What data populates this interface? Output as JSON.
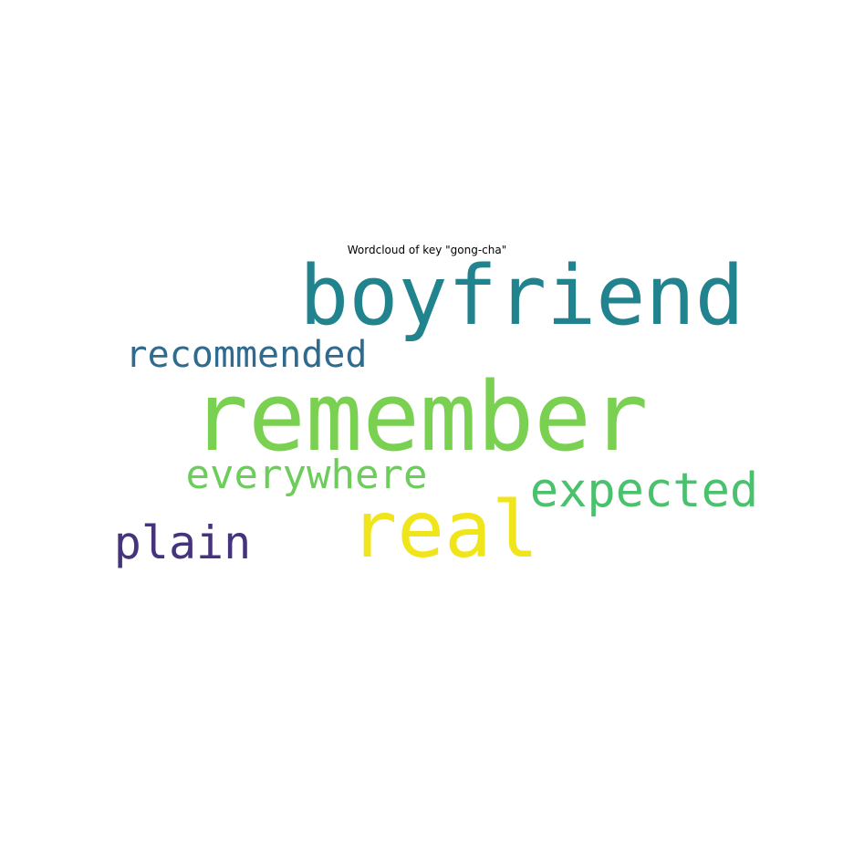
{
  "chart_data": {
    "type": "wordcloud",
    "title": "Wordcloud of key \"gong-cha\"",
    "words": [
      {
        "text": "boyfriend",
        "color": "#21838e"
      },
      {
        "text": "recommended",
        "color": "#2f6b8e"
      },
      {
        "text": "remember",
        "color": "#7ad151"
      },
      {
        "text": "everywhere",
        "color": "#6ccd5a"
      },
      {
        "text": "expected",
        "color": "#4ac16d"
      },
      {
        "text": "real",
        "color": "#f0e51a"
      },
      {
        "text": "plain",
        "color": "#46337e"
      }
    ]
  }
}
